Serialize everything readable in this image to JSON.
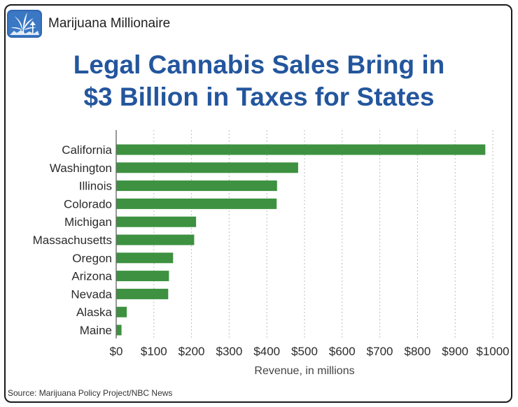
{
  "brand": {
    "name": "Marijuana Millionaire",
    "logo_icon": "cannabis-leaf-landscape-icon"
  },
  "title_lines": [
    "Legal Cannabis Sales Bring in",
    "$3 Billion in Taxes for States"
  ],
  "source": "Source: Marijuana Policy Project/NBC News",
  "colors": {
    "title": "#23569d",
    "bar": "#3d9140",
    "grid": "#bdbdbd",
    "axis": "#555555",
    "text": "#2b2b2b"
  },
  "chart_data": {
    "type": "bar",
    "orientation": "horizontal",
    "categories": [
      "California",
      "Washington",
      "Illinois",
      "Colorado",
      "Michigan",
      "Massachusetts",
      "Oregon",
      "Arizona",
      "Nevada",
      "Alaska",
      "Maine"
    ],
    "values": [
      979,
      482,
      426,
      425,
      211,
      206,
      150,
      139,
      137,
      27,
      13
    ],
    "xlabel": "Revenue, in millions",
    "ylabel": "",
    "xlim": [
      0,
      1000
    ],
    "xticks": [
      "$0",
      "$100",
      "$200",
      "$300",
      "$400",
      "$500",
      "$600",
      "$700",
      "$800",
      "$900",
      "$1000"
    ],
    "grid": "vertical dotted",
    "legend": "none"
  }
}
